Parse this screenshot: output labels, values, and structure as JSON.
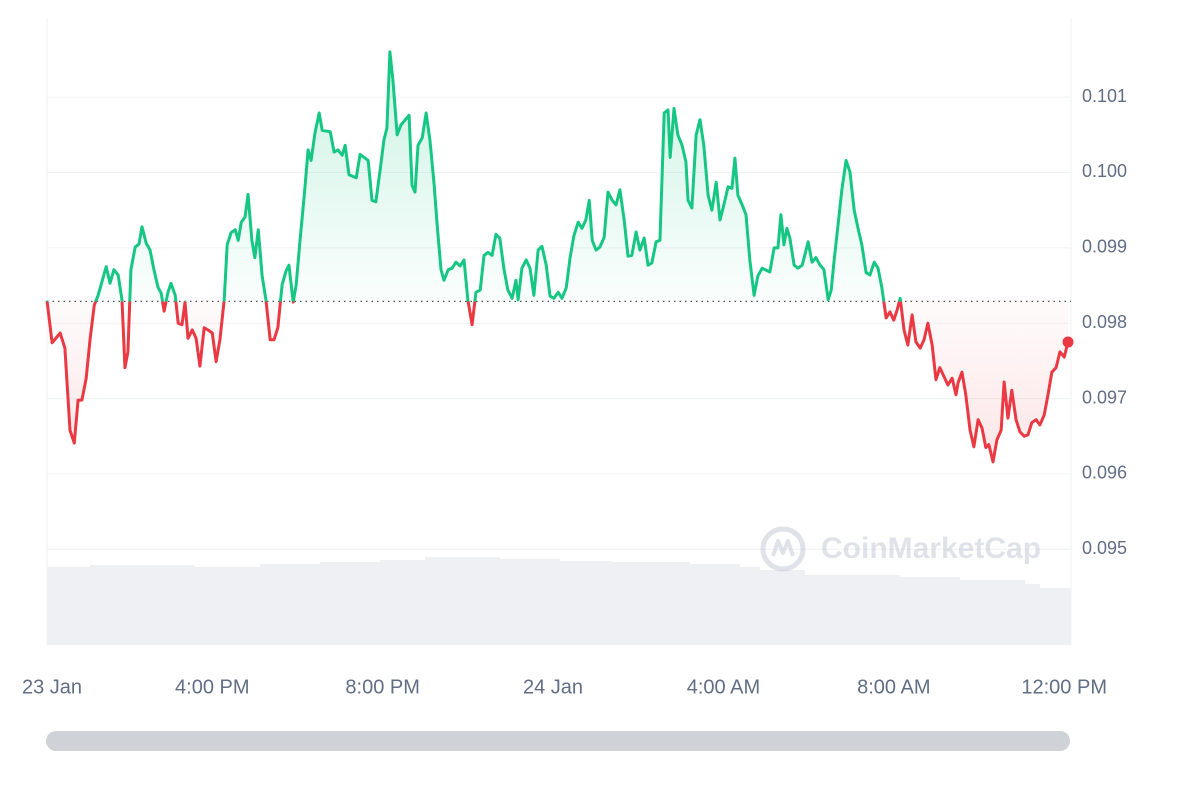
{
  "chart_data": {
    "type": "line",
    "watermark": "CoinMarketCap",
    "x": [
      -0.19,
      -0.07,
      0.12,
      0.23,
      0.35,
      0.45,
      0.54,
      0.63,
      0.73,
      0.82,
      0.92,
      1.01,
      1.1,
      1.2,
      1.29,
      1.38,
      1.48,
      1.57,
      1.64,
      1.71,
      1.78,
      1.88,
      1.97,
      2.04,
      2.14,
      2.23,
      2.32,
      2.42,
      2.49,
      2.56,
      2.65,
      2.72,
      2.82,
      2.89,
      2.98,
      3.05,
      3.12,
      3.22,
      3.31,
      3.4,
      3.5,
      3.59,
      3.69,
      3.78,
      3.87,
      3.97,
      4.04,
      4.13,
      4.23,
      4.3,
      4.37,
      4.46,
      4.53,
      4.62,
      4.69,
      4.77,
      4.86,
      4.95,
      5.05,
      5.14,
      5.23,
      5.33,
      5.42,
      5.49,
      5.59,
      5.66,
      5.75,
      5.85,
      5.94,
      6.01,
      6.1,
      6.2,
      6.27,
      6.46,
      6.55,
      6.64,
      6.74,
      6.81,
      6.9,
      7.07,
      7.16,
      7.35,
      7.44,
      7.53,
      7.63,
      7.72,
      7.79,
      7.86,
      7.93,
      8.03,
      8.12,
      8.31,
      8.38,
      8.45,
      8.52,
      8.62,
      8.71,
      8.8,
      8.9,
      8.97,
      9.06,
      9.13,
      9.23,
      9.32,
      9.41,
      9.51,
      9.6,
      9.69,
      9.79,
      9.88,
      9.98,
      10.07,
      10.16,
      10.26,
      10.35,
      10.44,
      10.54,
      10.63,
      10.73,
      10.82,
      10.87,
      10.96,
      11.06,
      11.15,
      11.24,
      11.34,
      11.43,
      11.53,
      11.62,
      11.71,
      11.81,
      11.9,
      12.0,
      12.09,
      12.18,
      12.28,
      12.37,
      12.46,
      12.54,
      12.61,
      12.7,
      12.79,
      12.89,
      12.98,
      13.08,
      13.17,
      13.26,
      13.36,
      13.45,
      13.54,
      13.64,
      13.73,
      13.83,
      13.92,
      14.01,
      14.11,
      14.2,
      14.3,
      14.39,
      14.44,
      14.53,
      14.62,
      14.72,
      14.81,
      14.86,
      14.95,
      15.05,
      15.14,
      15.23,
      15.33,
      15.42,
      15.52,
      15.61,
      15.7,
      15.8,
      15.89,
      15.96,
      16.03,
      16.13,
      16.22,
      16.31,
      16.41,
      16.5,
      16.6,
      16.78,
      16.88,
      16.97,
      17.04,
      17.11,
      17.18,
      17.25,
      17.35,
      17.44,
      17.54,
      17.68,
      17.77,
      17.86,
      17.96,
      18.05,
      18.15,
      18.22,
      18.29,
      18.38,
      18.47,
      18.57,
      18.66,
      18.76,
      18.85,
      18.94,
      19.04,
      19.13,
      19.23,
      19.32,
      19.41,
      19.51,
      19.6,
      19.69,
      19.77,
      19.84,
      19.93,
      20.02,
      20.12,
      20.21,
      20.31,
      20.4,
      20.49,
      20.59,
      20.68,
      20.77,
      20.87,
      20.96,
      21.06,
      21.15,
      21.2,
      21.29,
      21.38,
      21.48,
      21.57,
      21.67,
      21.76,
      21.85,
      21.92,
      22.02,
      22.11,
      22.21,
      22.28,
      22.37,
      22.46,
      22.56,
      22.65,
      22.75,
      22.84,
      22.93,
      23.03,
      23.12,
      23.22,
      23.31,
      23.4,
      23.5,
      23.59,
      23.69,
      23.78
    ],
    "values": [
      0.0983,
      0.09774,
      0.09787,
      0.09767,
      0.09658,
      0.09641,
      0.09698,
      0.09698,
      0.09727,
      0.09778,
      0.09824,
      0.09837,
      0.09855,
      0.09875,
      0.09853,
      0.09871,
      0.09864,
      0.09831,
      0.09741,
      0.09762,
      0.09871,
      0.09901,
      0.09905,
      0.09928,
      0.09906,
      0.09897,
      0.09871,
      0.09847,
      0.0984,
      0.09816,
      0.09841,
      0.09853,
      0.09837,
      0.098,
      0.09798,
      0.09828,
      0.0978,
      0.09791,
      0.0978,
      0.09743,
      0.09794,
      0.09791,
      0.09787,
      0.09749,
      0.09778,
      0.09831,
      0.09904,
      0.0992,
      0.09924,
      0.0991,
      0.09934,
      0.09941,
      0.09971,
      0.0991,
      0.09887,
      0.09924,
      0.09863,
      0.09831,
      0.09778,
      0.09778,
      0.09794,
      0.09851,
      0.09869,
      0.09877,
      0.09828,
      0.09851,
      0.0991,
      0.0997,
      0.1003,
      0.10016,
      0.10052,
      0.10079,
      0.10056,
      0.10054,
      0.10027,
      0.1003,
      0.10023,
      0.10036,
      0.09997,
      0.09993,
      0.10024,
      0.10016,
      0.09963,
      0.09961,
      0.10003,
      0.10043,
      0.10059,
      0.1016,
      0.10123,
      0.1005,
      0.10063,
      0.10076,
      0.09983,
      0.09974,
      0.10036,
      0.10046,
      0.10079,
      0.10043,
      0.09983,
      0.0993,
      0.09871,
      0.09857,
      0.09871,
      0.09873,
      0.09881,
      0.09876,
      0.09884,
      0.09831,
      0.09798,
      0.09841,
      0.09844,
      0.0989,
      0.09894,
      0.0989,
      0.09918,
      0.09913,
      0.09871,
      0.09844,
      0.09833,
      0.09857,
      0.09831,
      0.09873,
      0.09884,
      0.09873,
      0.09837,
      0.09897,
      0.09902,
      0.09877,
      0.09836,
      0.09833,
      0.09841,
      0.09833,
      0.09847,
      0.09887,
      0.09916,
      0.09934,
      0.09926,
      0.09937,
      0.09963,
      0.0991,
      0.09897,
      0.09901,
      0.09914,
      0.09974,
      0.09963,
      0.09957,
      0.09977,
      0.09937,
      0.09889,
      0.0989,
      0.09921,
      0.09897,
      0.09913,
      0.09877,
      0.0988,
      0.09908,
      0.0991,
      0.10079,
      0.10083,
      0.1002,
      0.10085,
      0.1005,
      0.10036,
      0.10014,
      0.09963,
      0.09953,
      0.1005,
      0.1007,
      0.10036,
      0.0997,
      0.0995,
      0.09987,
      0.09937,
      0.09957,
      0.09981,
      0.09979,
      0.10019,
      0.0997,
      0.09957,
      0.09944,
      0.09884,
      0.09837,
      0.09863,
      0.09873,
      0.09868,
      0.099,
      0.099,
      0.09944,
      0.09904,
      0.09926,
      0.09913,
      0.09877,
      0.09873,
      0.09877,
      0.09908,
      0.09881,
      0.09887,
      0.09877,
      0.09871,
      0.09831,
      0.09844,
      0.09884,
      0.0993,
      0.09977,
      0.10016,
      0.10001,
      0.0995,
      0.09926,
      0.09904,
      0.09867,
      0.09864,
      0.09881,
      0.09873,
      0.09847,
      0.09807,
      0.09815,
      0.09804,
      0.09818,
      0.09833,
      0.09791,
      0.09771,
      0.09811,
      0.09775,
      0.09767,
      0.09778,
      0.098,
      0.09771,
      0.09725,
      0.09741,
      0.09729,
      0.09718,
      0.09727,
      0.09705,
      0.09721,
      0.09735,
      0.09705,
      0.09658,
      0.09636,
      0.09672,
      0.09661,
      0.09635,
      0.09639,
      0.09616,
      0.09645,
      0.09658,
      0.09722,
      0.09674,
      0.09711,
      0.09672,
      0.09656,
      0.0965,
      0.09652,
      0.09668,
      0.09672,
      0.09665,
      0.09678,
      0.09705,
      0.09735,
      0.09741,
      0.09762,
      0.09755,
      0.09775
    ],
    "baseline": 0.09829,
    "color_above": "#16c784",
    "color_below": "#ea3943",
    "xlim": [
      -0.19,
      23.85
    ],
    "ylim": [
      0.09373,
      0.10205
    ],
    "xticks": [
      {
        "value": -0.31,
        "label": "23 Jan"
      },
      {
        "value": 3.69,
        "label": "4:00 PM"
      },
      {
        "value": 7.69,
        "label": "8:00 PM"
      },
      {
        "value": 11.69,
        "label": "24 Jan"
      },
      {
        "value": 15.69,
        "label": "4:00 AM"
      },
      {
        "value": 19.69,
        "label": "8:00 AM"
      },
      {
        "value": 23.69,
        "label": "12:00 PM"
      }
    ],
    "yticks": [
      0.095,
      0.096,
      0.097,
      0.098,
      0.099,
      {
        "value": 0.1,
        "label": "0.100"
      },
      0.101
    ],
    "grid": true
  }
}
